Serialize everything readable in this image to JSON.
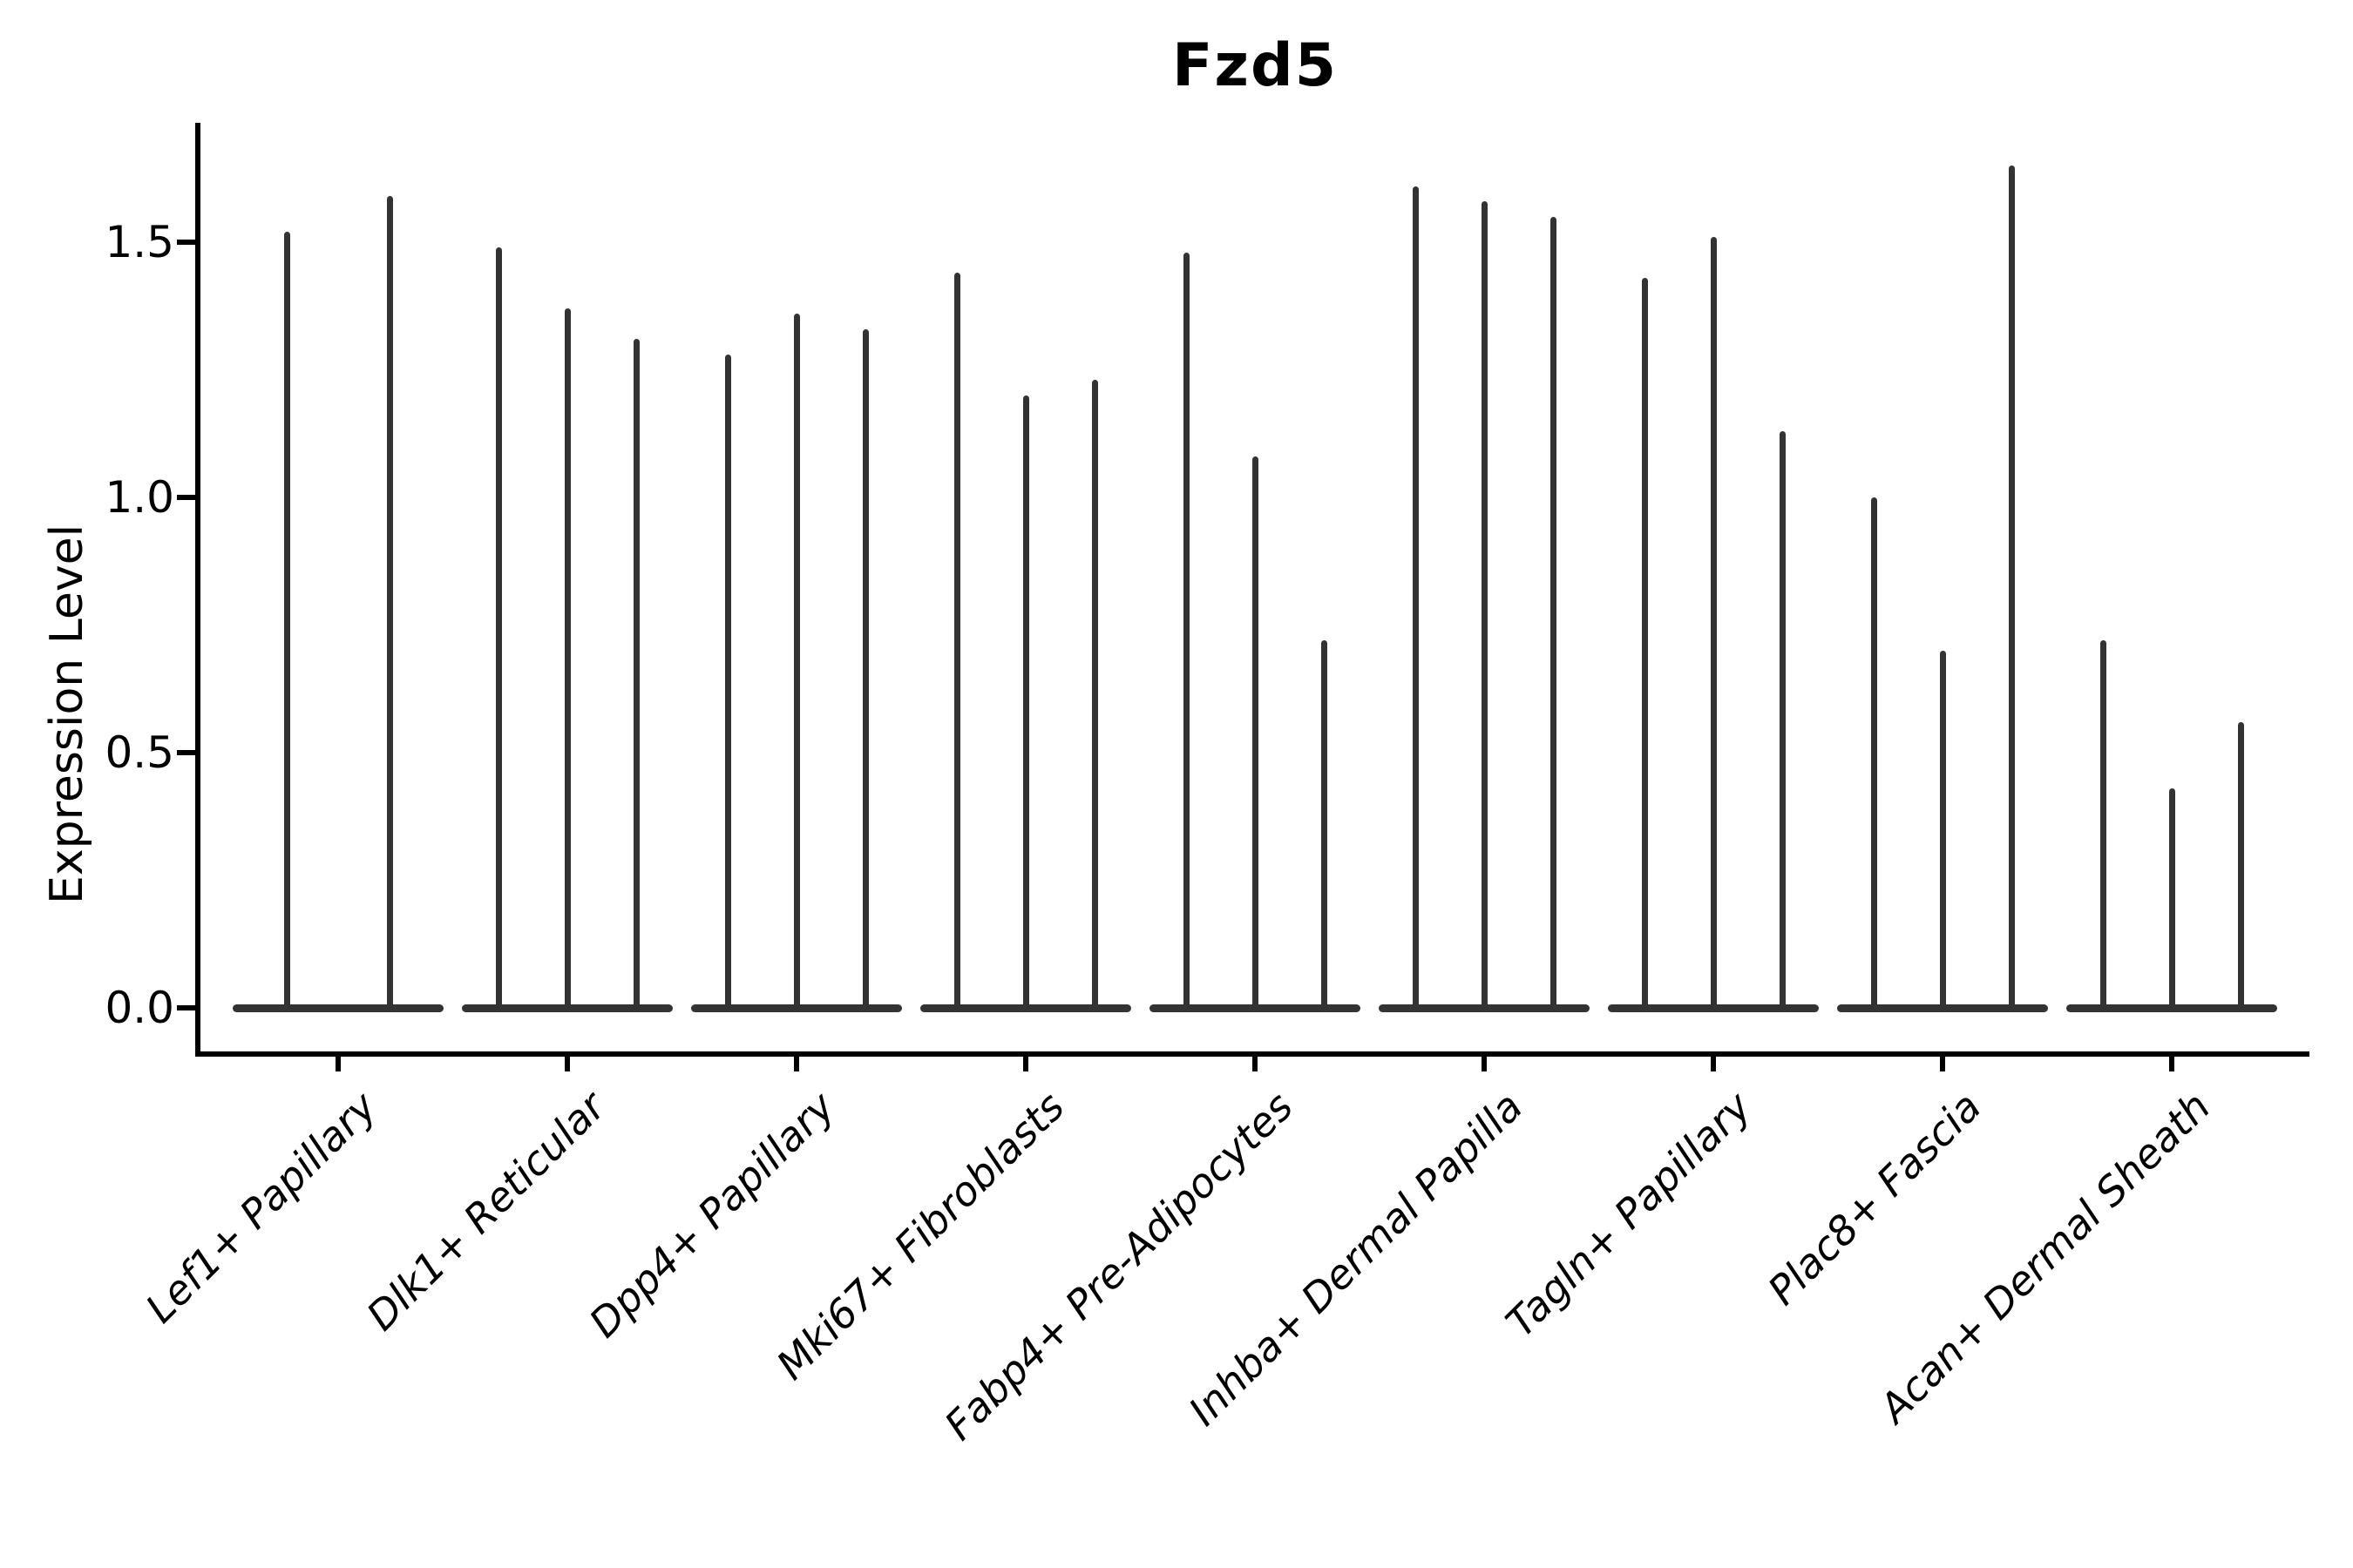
{
  "title": "Fzd5",
  "chart_data": {
    "type": "violin",
    "title": "Fzd5",
    "xlabel": "",
    "ylabel": "Expression Level",
    "ylim": [
      0,
      1.73
    ],
    "yticks": [
      0.0,
      0.5,
      1.0,
      1.5
    ],
    "grid": false,
    "legend": "none",
    "x_label_rotation": 45,
    "x_label_style": "italic",
    "categories": [
      "Lef1+ Papillary",
      "Dlk1+ Reticular",
      "Dpp4+ Papillary",
      "Mki67+ Fibroblasts",
      "Fabp4+ Pre-Adipocytes",
      "Inhba+ Dermal Papilla",
      "Tagln+ Papillary",
      "Plac8+ Fascia",
      "Acan+ Dermal Sheath"
    ],
    "violins": [
      {
        "category": "Lef1+ Papillary",
        "max_values": [
          1.52,
          1.59
        ]
      },
      {
        "category": "Dlk1+ Reticular",
        "max_values": [
          1.49,
          1.37,
          1.31
        ]
      },
      {
        "category": "Dpp4+ Papillary",
        "max_values": [
          1.28,
          1.36,
          1.33
        ]
      },
      {
        "category": "Mki67+ Fibroblasts",
        "max_values": [
          1.44,
          1.2,
          1.23
        ]
      },
      {
        "category": "Fabp4+ Pre-Adipocytes",
        "max_values": [
          1.48,
          1.08,
          0.72
        ]
      },
      {
        "category": "Inhba+ Dermal Papilla",
        "max_values": [
          1.61,
          1.58,
          1.55
        ]
      },
      {
        "category": "Tagln+ Papillary",
        "max_values": [
          1.43,
          1.51,
          1.13
        ]
      },
      {
        "category": "Plac8+ Fascia",
        "max_values": [
          1.0,
          0.7,
          1.65
        ]
      },
      {
        "category": "Acan+ Dermal Sheath",
        "max_values": [
          0.72,
          0.43,
          0.56
        ]
      }
    ],
    "shape_note": "Each violin is a flat wide density blob at expression 0 with a thin spike rising to its max value",
    "colors": {
      "violin": "#333333",
      "axis": "#000000",
      "text": "#000000",
      "background": "#ffffff"
    }
  }
}
